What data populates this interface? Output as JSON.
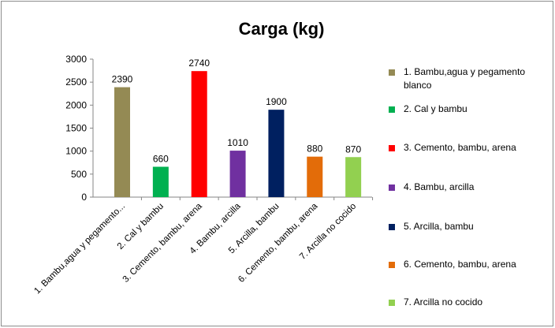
{
  "chart_data": {
    "type": "bar",
    "title": "Carga (kg)",
    "categories": [
      "1. Bambu,agua y pegamento blanco",
      "2. Cal y bambu",
      "3. Cemento, bambu, arena",
      "4. Bambu, arcilla",
      "5. Arcilla, bambu",
      "6. Cemento, bambu, arena",
      "7. Arcilla no cocido"
    ],
    "x_tick_labels": [
      "1. Bambu,agua y pegamento...",
      "2. Cal y bambu",
      "3. Cemento, bambu, arena",
      "4. Bambu, arcilla",
      "5. Arcilla, bambu",
      "6. Cemento, bambu, arena",
      "7. Arcilla no cocido"
    ],
    "values": [
      2390,
      660,
      2740,
      1010,
      1900,
      880,
      870
    ],
    "colors": [
      "#948a54",
      "#00b050",
      "#ff0000",
      "#7030a0",
      "#002060",
      "#e36c09",
      "#92d050"
    ],
    "ylim": [
      0,
      3000
    ],
    "yticks": [
      0,
      500,
      1000,
      1500,
      2000,
      2500,
      3000
    ],
    "legend": "right",
    "data_labels": true
  }
}
